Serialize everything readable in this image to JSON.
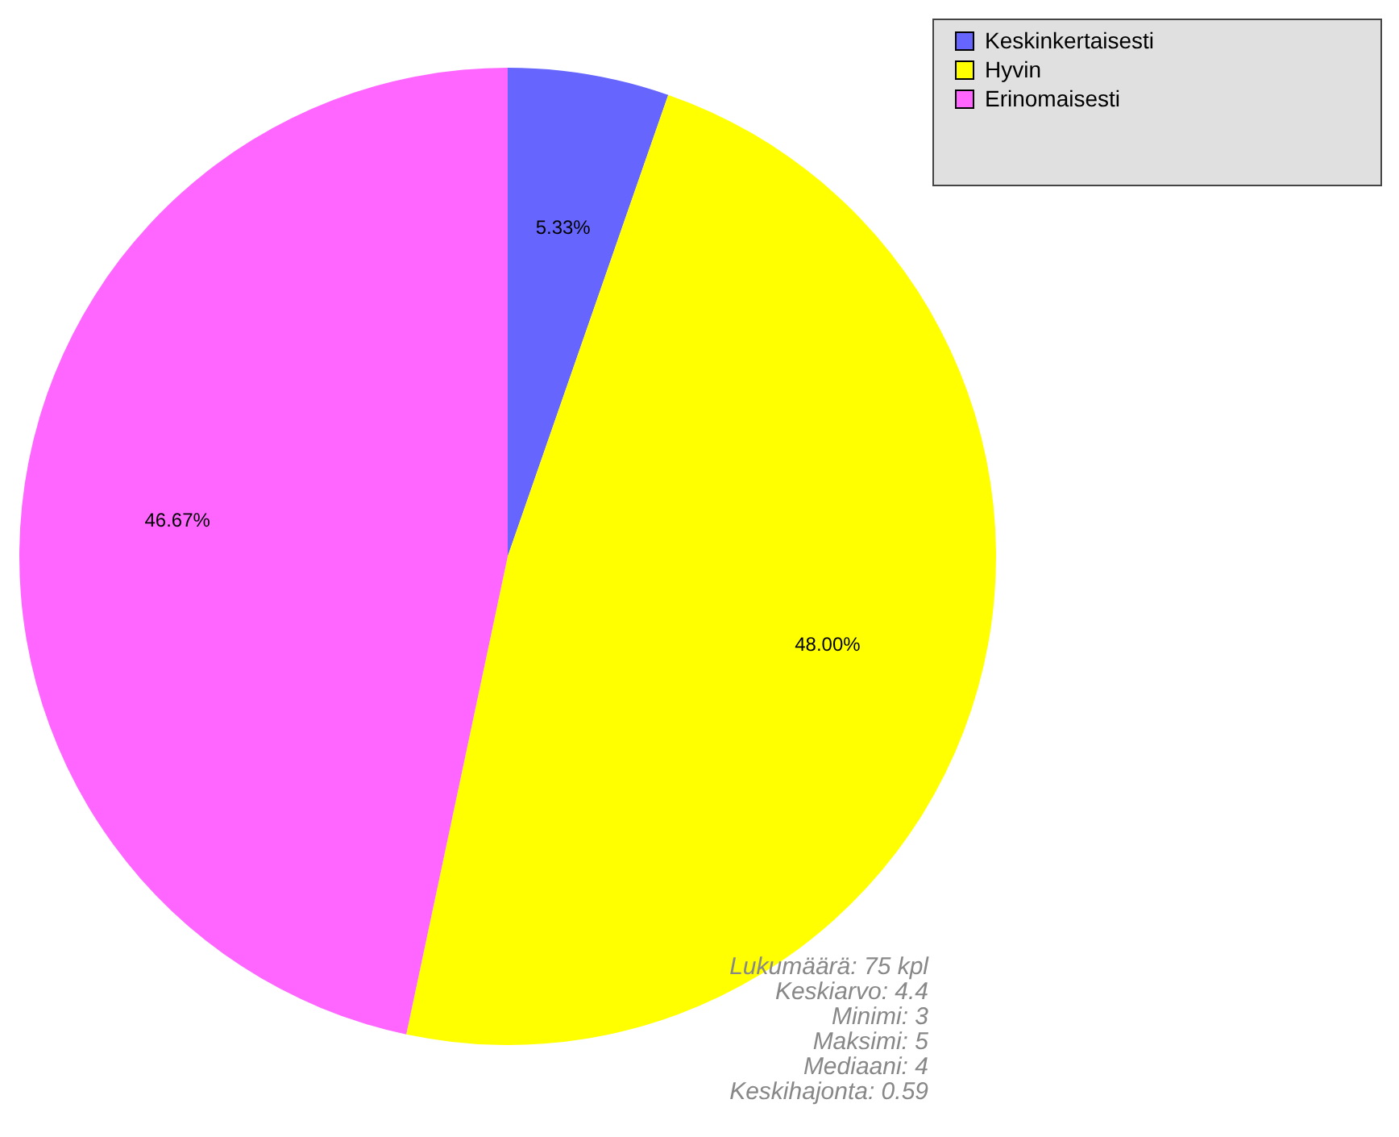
{
  "chart_data": {
    "type": "pie",
    "categories": [
      "Keskinkertaisesti",
      "Hyvin",
      "Erinomaisesti"
    ],
    "values": [
      5.33,
      48.0,
      46.67
    ],
    "colors": [
      "#6666ff",
      "#ffff00",
      "#ff66ff"
    ],
    "value_labels": [
      "5.33%",
      "48.00%",
      "46.67%"
    ],
    "legend": "top right",
    "annotations": [
      "Lukumäärä: 75 kpl",
      "Keskiarvo: 4.4",
      "Minimi: 3",
      "Maksimi: 5",
      "Mediaani: 4",
      "Keskihajonta: 0.59"
    ]
  }
}
